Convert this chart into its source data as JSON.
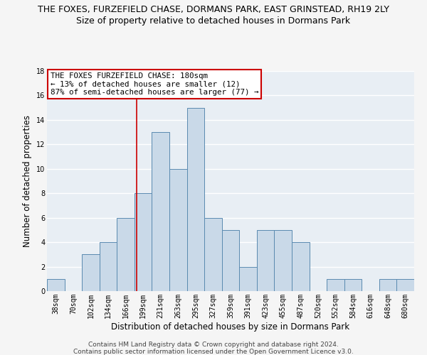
{
  "title": "THE FOXES, FURZEFIELD CHASE, DORMANS PARK, EAST GRINSTEAD, RH19 2LY",
  "subtitle": "Size of property relative to detached houses in Dormans Park",
  "xlabel": "Distribution of detached houses by size in Dormans Park",
  "ylabel": "Number of detached properties",
  "footer1": "Contains HM Land Registry data © Crown copyright and database right 2024.",
  "footer2": "Contains public sector information licensed under the Open Government Licence v3.0.",
  "bar_labels": [
    "38sqm",
    "70sqm",
    "102sqm",
    "134sqm",
    "166sqm",
    "199sqm",
    "231sqm",
    "263sqm",
    "295sqm",
    "327sqm",
    "359sqm",
    "391sqm",
    "423sqm",
    "455sqm",
    "487sqm",
    "520sqm",
    "552sqm",
    "584sqm",
    "616sqm",
    "648sqm",
    "680sqm"
  ],
  "bar_values": [
    1,
    0,
    3,
    4,
    6,
    8,
    13,
    10,
    15,
    6,
    5,
    2,
    5,
    5,
    4,
    0,
    1,
    1,
    0,
    1,
    1
  ],
  "bar_color": "#c9d9e8",
  "bar_edge_color": "#5a8ab0",
  "background_color": "#e8eef4",
  "grid_color": "#ffffff",
  "annotation_text": "THE FOXES FURZEFIELD CHASE: 180sqm\n← 13% of detached houses are smaller (12)\n87% of semi-detached houses are larger (77) →",
  "annotation_box_color": "#ffffff",
  "annotation_box_edge": "#cc0000",
  "vline_x_index": 4.62,
  "vline_color": "#cc0000",
  "ylim": [
    0,
    18
  ],
  "yticks": [
    0,
    2,
    4,
    6,
    8,
    10,
    12,
    14,
    16,
    18
  ],
  "title_fontsize": 9,
  "subtitle_fontsize": 9,
  "xlabel_fontsize": 8.5,
  "ylabel_fontsize": 8.5,
  "tick_fontsize": 7,
  "annotation_fontsize": 7.8,
  "footer_fontsize": 6.5
}
